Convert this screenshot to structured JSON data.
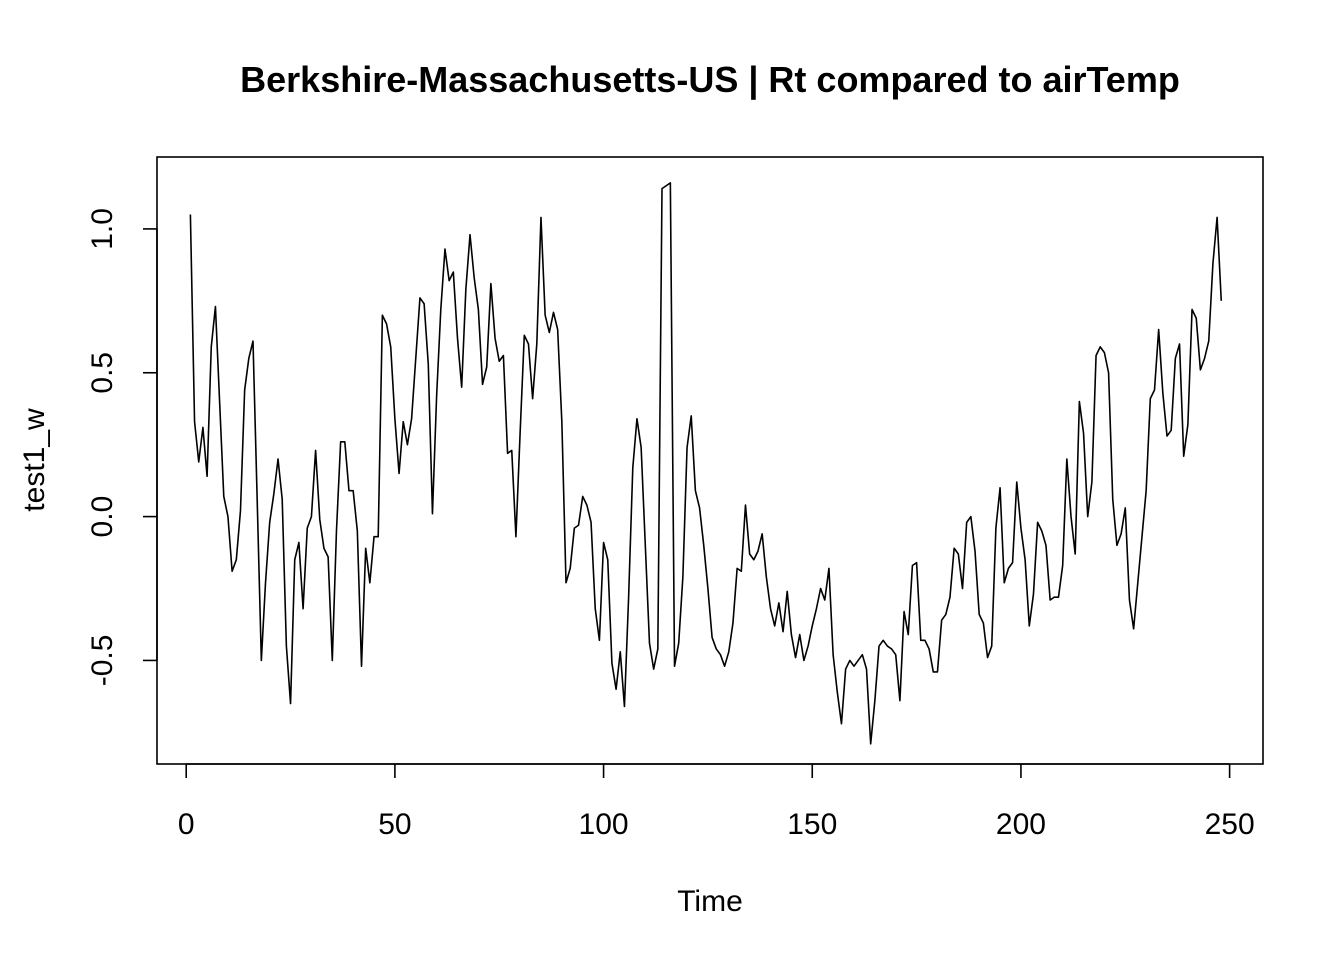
{
  "chart_data": {
    "type": "line",
    "title": "Berkshire-Massachusetts-US | Rt compared to airTemp",
    "xlabel": "Time",
    "ylabel": "test1_w",
    "xlim": [
      -7,
      258
    ],
    "ylim": [
      -0.86,
      1.25
    ],
    "x_ticks": [
      0,
      50,
      100,
      150,
      200,
      250
    ],
    "x_tick_labels": [
      "0",
      "50",
      "100",
      "150",
      "200",
      "250"
    ],
    "y_ticks": [
      -0.5,
      0.0,
      0.5,
      1.0
    ],
    "y_tick_labels": [
      "-0.5",
      "0.0",
      "0.5",
      "1.0"
    ],
    "grid": false,
    "legend": "none",
    "x": [
      1,
      2,
      3,
      4,
      5,
      6,
      7,
      8,
      9,
      10,
      11,
      12,
      13,
      14,
      15,
      16,
      17,
      18,
      19,
      20,
      21,
      22,
      23,
      24,
      25,
      26,
      27,
      28,
      29,
      30,
      31,
      32,
      33,
      34,
      35,
      36,
      37,
      38,
      39,
      40,
      41,
      42,
      43,
      44,
      45,
      46,
      47,
      48,
      49,
      50,
      51,
      52,
      53,
      54,
      55,
      56,
      57,
      58,
      59,
      60,
      61,
      62,
      63,
      64,
      65,
      66,
      67,
      68,
      69,
      70,
      71,
      72,
      73,
      74,
      75,
      76,
      77,
      78,
      79,
      80,
      81,
      82,
      83,
      84,
      85,
      86,
      87,
      88,
      89,
      90,
      91,
      92,
      93,
      94,
      95,
      96,
      97,
      98,
      99,
      100,
      101,
      102,
      103,
      104,
      105,
      106,
      107,
      108,
      109,
      110,
      111,
      112,
      113,
      114,
      115,
      116,
      117,
      118,
      119,
      120,
      121,
      122,
      123,
      124,
      125,
      126,
      127,
      128,
      129,
      130,
      131,
      132,
      133,
      134,
      135,
      136,
      137,
      138,
      139,
      140,
      141,
      142,
      143,
      144,
      145,
      146,
      147,
      148,
      149,
      150,
      151,
      152,
      153,
      154,
      155,
      156,
      157,
      158,
      159,
      160,
      161,
      162,
      163,
      164,
      165,
      166,
      167,
      168,
      169,
      170,
      171,
      172,
      173,
      174,
      175,
      176,
      177,
      178,
      179,
      180,
      181,
      182,
      183,
      184,
      185,
      186,
      187,
      188,
      189,
      190,
      191,
      192,
      193,
      194,
      195,
      196,
      197,
      198,
      199,
      200,
      201,
      202,
      203,
      204,
      205,
      206,
      207,
      208,
      209,
      210,
      211,
      212,
      213,
      214,
      215,
      216,
      217,
      218,
      219,
      220,
      221,
      222,
      223,
      224,
      225,
      226,
      227,
      228,
      229,
      230,
      231,
      232,
      233,
      234,
      235,
      236,
      237,
      238,
      239,
      240,
      241,
      242,
      243,
      244,
      245,
      246,
      247,
      248
    ],
    "series": [
      {
        "values": [
          1.05,
          0.33,
          0.19,
          0.31,
          0.14,
          0.59,
          0.73,
          0.4,
          0.07,
          0.0,
          -0.19,
          -0.15,
          0.02,
          0.44,
          0.55,
          0.61,
          0.06,
          -0.5,
          -0.23,
          -0.02,
          0.08,
          0.2,
          0.06,
          -0.45,
          -0.65,
          -0.15,
          -0.09,
          -0.32,
          -0.04,
          0.0,
          0.23,
          -0.01,
          -0.11,
          -0.14,
          -0.5,
          -0.05,
          0.26,
          0.26,
          0.09,
          0.09,
          -0.05,
          -0.52,
          -0.11,
          -0.23,
          -0.07,
          -0.07,
          0.7,
          0.67,
          0.59,
          0.34,
          0.15,
          0.33,
          0.25,
          0.34,
          0.55,
          0.76,
          0.74,
          0.53,
          0.01,
          0.42,
          0.72,
          0.93,
          0.82,
          0.85,
          0.62,
          0.45,
          0.79,
          0.98,
          0.83,
          0.72,
          0.46,
          0.52,
          0.81,
          0.62,
          0.54,
          0.56,
          0.22,
          0.23,
          -0.07,
          0.29,
          0.63,
          0.6,
          0.41,
          0.6,
          1.04,
          0.7,
          0.64,
          0.71,
          0.65,
          0.33,
          -0.23,
          -0.18,
          -0.04,
          -0.03,
          0.07,
          0.04,
          -0.02,
          -0.32,
          -0.43,
          -0.09,
          -0.15,
          -0.51,
          -0.6,
          -0.47,
          -0.66,
          -0.28,
          0.17,
          0.34,
          0.24,
          -0.1,
          -0.44,
          -0.53,
          -0.46,
          1.14,
          1.15,
          1.16,
          -0.52,
          -0.44,
          -0.21,
          0.24,
          0.35,
          0.09,
          0.03,
          -0.1,
          -0.25,
          -0.42,
          -0.46,
          -0.48,
          -0.52,
          -0.47,
          -0.37,
          -0.18,
          -0.19,
          0.04,
          -0.13,
          -0.15,
          -0.12,
          -0.06,
          -0.21,
          -0.32,
          -0.38,
          -0.3,
          -0.4,
          -0.26,
          -0.41,
          -0.49,
          -0.41,
          -0.5,
          -0.45,
          -0.38,
          -0.32,
          -0.25,
          -0.29,
          -0.18,
          -0.48,
          -0.61,
          -0.72,
          -0.53,
          -0.5,
          -0.52,
          -0.5,
          -0.48,
          -0.53,
          -0.79,
          -0.64,
          -0.45,
          -0.43,
          -0.45,
          -0.46,
          -0.48,
          -0.64,
          -0.33,
          -0.41,
          -0.17,
          -0.16,
          -0.43,
          -0.43,
          -0.46,
          -0.54,
          -0.54,
          -0.36,
          -0.34,
          -0.28,
          -0.11,
          -0.13,
          -0.25,
          -0.02,
          0.0,
          -0.12,
          -0.34,
          -0.37,
          -0.49,
          -0.45,
          -0.04,
          0.1,
          -0.23,
          -0.18,
          -0.16,
          0.12,
          -0.04,
          -0.15,
          -0.38,
          -0.27,
          -0.02,
          -0.05,
          -0.1,
          -0.29,
          -0.28,
          -0.28,
          -0.17,
          0.2,
          0.0,
          -0.13,
          0.4,
          0.29,
          0.0,
          0.12,
          0.56,
          0.59,
          0.57,
          0.5,
          0.06,
          -0.1,
          -0.06,
          0.03,
          -0.29,
          -0.39,
          -0.23,
          -0.07,
          0.09,
          0.41,
          0.44,
          0.65,
          0.43,
          0.28,
          0.3,
          0.55,
          0.6,
          0.21,
          0.32,
          0.72,
          0.69,
          0.51,
          0.55,
          0.61,
          0.88,
          1.04,
          0.75
        ]
      }
    ]
  }
}
